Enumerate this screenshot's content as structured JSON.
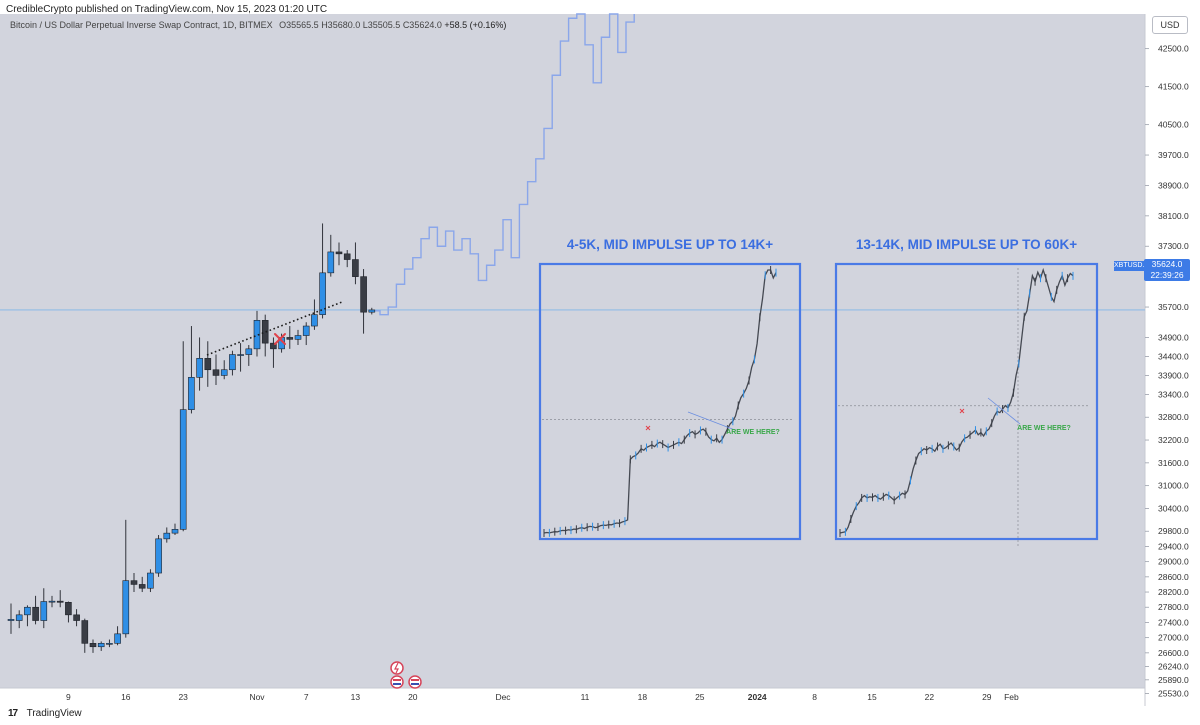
{
  "header": {
    "published": "CredibleCrypto published on TradingView.com, Nov 15, 2023 01:20 UTC"
  },
  "symbol": {
    "name": "Bitcoin / US Dollar Perpetual Inverse Swap Contract, 1D, BITMEX",
    "open": "O35565.5",
    "high": "H35680.0",
    "low": "L35505.5",
    "close": "C35624.0",
    "change": "+58.5 (+0.16%)"
  },
  "currency_button": "USD",
  "price_tag": {
    "ticker": "XBTUSD.P",
    "price": "35624.0",
    "countdown": "22:39:26"
  },
  "footer": {
    "brand": "TradingView",
    "logo": "tv-logo"
  },
  "colors": {
    "background": "#d2d4dd",
    "up": "#2f8fe6",
    "down": "#3a3d45",
    "projection": "#8aa6ea",
    "box": "#4a7ae6",
    "box_title": "#3b6ee0",
    "annotation_green": "#3aa84a",
    "x_mark": "#e1414a"
  },
  "chart_data": {
    "type": "candlestick",
    "title": "",
    "xlabel": "",
    "ylabel": "",
    "ylim": [
      25530,
      43100
    ],
    "y_ticks": [
      42500,
      41500,
      40500,
      39700,
      38900,
      38100,
      37300,
      36500,
      35700,
      34900,
      34400,
      33900,
      33400,
      32800,
      32200,
      31600,
      31000,
      30400,
      29800,
      29400,
      29000,
      28600,
      28200,
      27800,
      27400,
      27000,
      26600,
      26240,
      25890,
      25530
    ],
    "y_tick_labels": [
      "42500.0",
      "41500.0",
      "40500.0",
      "39700.0",
      "38900.0",
      "38100.0",
      "37300.0",
      "36500.0",
      "35700.0",
      "34900.0",
      "34400.0",
      "33900.0",
      "33400.0",
      "32800.0",
      "32200.0",
      "31600.0",
      "31000.0",
      "30400.0",
      "29800.0",
      "29400.0",
      "29000.0",
      "28600.0",
      "28200.0",
      "27800.0",
      "27400.0",
      "27000.0",
      "26600.0",
      "26240.0",
      "25890.0",
      "25530.0"
    ],
    "x_start_date": "2023-10-02",
    "x_end_date": "2024-02-05",
    "x_ticks": [
      {
        "date": "2023-10-09",
        "label": "9"
      },
      {
        "date": "2023-10-16",
        "label": "16"
      },
      {
        "date": "2023-10-23",
        "label": "23"
      },
      {
        "date": "2023-11-01",
        "label": "Nov"
      },
      {
        "date": "2023-11-07",
        "label": "7"
      },
      {
        "date": "2023-11-13",
        "label": "13"
      },
      {
        "date": "2023-11-20",
        "label": "20"
      },
      {
        "date": "2023-12-01",
        "label": "Dec"
      },
      {
        "date": "2023-12-11",
        "label": "11"
      },
      {
        "date": "2023-12-18",
        "label": "18"
      },
      {
        "date": "2023-12-25",
        "label": "25"
      },
      {
        "date": "2024-01-01",
        "label": "2024"
      },
      {
        "date": "2024-01-08",
        "label": "8"
      },
      {
        "date": "2024-01-15",
        "label": "15"
      },
      {
        "date": "2024-01-22",
        "label": "22"
      },
      {
        "date": "2024-01-29",
        "label": "29"
      },
      {
        "date": "2024-02-01",
        "label": "Feb"
      }
    ],
    "candles": [
      {
        "date": "2023-10-02",
        "o": 27450,
        "h": 27900,
        "l": 27100,
        "c": 27480
      },
      {
        "date": "2023-10-03",
        "o": 27450,
        "h": 27720,
        "l": 27250,
        "c": 27600
      },
      {
        "date": "2023-10-04",
        "o": 27600,
        "h": 27850,
        "l": 27300,
        "c": 27800
      },
      {
        "date": "2023-10-05",
        "o": 27800,
        "h": 28100,
        "l": 27350,
        "c": 27450
      },
      {
        "date": "2023-10-06",
        "o": 27450,
        "h": 28300,
        "l": 27250,
        "c": 27950
      },
      {
        "date": "2023-10-07",
        "o": 27950,
        "h": 28100,
        "l": 27800,
        "c": 27960
      },
      {
        "date": "2023-10-08",
        "o": 27960,
        "h": 28250,
        "l": 27800,
        "c": 27930
      },
      {
        "date": "2023-10-09",
        "o": 27930,
        "h": 27950,
        "l": 27400,
        "c": 27600
      },
      {
        "date": "2023-10-10",
        "o": 27600,
        "h": 27750,
        "l": 27300,
        "c": 27450
      },
      {
        "date": "2023-10-11",
        "o": 27450,
        "h": 27500,
        "l": 26600,
        "c": 26850
      },
      {
        "date": "2023-10-12",
        "o": 26850,
        "h": 26950,
        "l": 26600,
        "c": 26760
      },
      {
        "date": "2023-10-13",
        "o": 26760,
        "h": 26900,
        "l": 26650,
        "c": 26850
      },
      {
        "date": "2023-10-14",
        "o": 26850,
        "h": 26950,
        "l": 26750,
        "c": 26850
      },
      {
        "date": "2023-10-15",
        "o": 26850,
        "h": 27300,
        "l": 26800,
        "c": 27100
      },
      {
        "date": "2023-10-16",
        "o": 27100,
        "h": 30100,
        "l": 27000,
        "c": 28500
      },
      {
        "date": "2023-10-17",
        "o": 28500,
        "h": 28700,
        "l": 28200,
        "c": 28400
      },
      {
        "date": "2023-10-18",
        "o": 28400,
        "h": 28600,
        "l": 28200,
        "c": 28300
      },
      {
        "date": "2023-10-19",
        "o": 28300,
        "h": 28800,
        "l": 28200,
        "c": 28700
      },
      {
        "date": "2023-10-20",
        "o": 28700,
        "h": 29700,
        "l": 28600,
        "c": 29600
      },
      {
        "date": "2023-10-21",
        "o": 29600,
        "h": 29900,
        "l": 29500,
        "c": 29750
      },
      {
        "date": "2023-10-22",
        "o": 29750,
        "h": 30000,
        "l": 29700,
        "c": 29850
      },
      {
        "date": "2023-10-23",
        "o": 29850,
        "h": 34800,
        "l": 29800,
        "c": 33000
      },
      {
        "date": "2023-10-24",
        "o": 33000,
        "h": 35200,
        "l": 32900,
        "c": 33850
      },
      {
        "date": "2023-10-25",
        "o": 33850,
        "h": 34900,
        "l": 33500,
        "c": 34350
      },
      {
        "date": "2023-10-26",
        "o": 34350,
        "h": 34800,
        "l": 33600,
        "c": 34050
      },
      {
        "date": "2023-10-27",
        "o": 34050,
        "h": 34450,
        "l": 33650,
        "c": 33900
      },
      {
        "date": "2023-10-28",
        "o": 33900,
        "h": 34300,
        "l": 33800,
        "c": 34050
      },
      {
        "date": "2023-10-29",
        "o": 34050,
        "h": 34550,
        "l": 33900,
        "c": 34450
      },
      {
        "date": "2023-10-30",
        "o": 34450,
        "h": 34750,
        "l": 34000,
        "c": 34450
      },
      {
        "date": "2023-10-31",
        "o": 34450,
        "h": 34700,
        "l": 34150,
        "c": 34600
      },
      {
        "date": "2023-11-01",
        "o": 34600,
        "h": 35600,
        "l": 34400,
        "c": 35350
      },
      {
        "date": "2023-11-02",
        "o": 35350,
        "h": 35500,
        "l": 34400,
        "c": 34750
      },
      {
        "date": "2023-11-03",
        "o": 34750,
        "h": 34900,
        "l": 34100,
        "c": 34600
      },
      {
        "date": "2023-11-04",
        "o": 34600,
        "h": 35000,
        "l": 34500,
        "c": 34900
      },
      {
        "date": "2023-11-05",
        "o": 34900,
        "h": 35200,
        "l": 34600,
        "c": 34850
      },
      {
        "date": "2023-11-06",
        "o": 34850,
        "h": 35100,
        "l": 34700,
        "c": 34950
      },
      {
        "date": "2023-11-07",
        "o": 34950,
        "h": 35300,
        "l": 34700,
        "c": 35200
      },
      {
        "date": "2023-11-08",
        "o": 35200,
        "h": 35900,
        "l": 35100,
        "c": 35500
      },
      {
        "date": "2023-11-09",
        "o": 35500,
        "h": 37900,
        "l": 35400,
        "c": 36600
      },
      {
        "date": "2023-11-10",
        "o": 36600,
        "h": 37600,
        "l": 36500,
        "c": 37150
      },
      {
        "date": "2023-11-11",
        "o": 37150,
        "h": 37400,
        "l": 36800,
        "c": 37100
      },
      {
        "date": "2023-11-12",
        "o": 37100,
        "h": 37200,
        "l": 36750,
        "c": 36950
      },
      {
        "date": "2023-11-13",
        "o": 36950,
        "h": 37400,
        "l": 36300,
        "c": 36500
      },
      {
        "date": "2023-11-14",
        "o": 36500,
        "h": 36700,
        "l": 35000,
        "c": 35565
      },
      {
        "date": "2023-11-15",
        "o": 35565,
        "h": 35680,
        "l": 35505,
        "c": 35624
      }
    ],
    "projection": [
      {
        "date": "2023-11-15",
        "v": 35600
      },
      {
        "date": "2023-11-16",
        "v": 35500
      },
      {
        "date": "2023-11-17",
        "v": 35700
      },
      {
        "date": "2023-11-18",
        "v": 36300
      },
      {
        "date": "2023-11-19",
        "v": 36700
      },
      {
        "date": "2023-11-20",
        "v": 37000
      },
      {
        "date": "2023-11-21",
        "v": 37500
      },
      {
        "date": "2023-11-22",
        "v": 37800
      },
      {
        "date": "2023-11-23",
        "v": 37300
      },
      {
        "date": "2023-11-24",
        "v": 37700
      },
      {
        "date": "2023-11-25",
        "v": 37200
      },
      {
        "date": "2023-11-26",
        "v": 37500
      },
      {
        "date": "2023-11-27",
        "v": 37100
      },
      {
        "date": "2023-11-28",
        "v": 36400
      },
      {
        "date": "2023-11-29",
        "v": 36800
      },
      {
        "date": "2023-11-30",
        "v": 37200
      },
      {
        "date": "2023-12-01",
        "v": 38000
      },
      {
        "date": "2023-12-02",
        "v": 37000
      },
      {
        "date": "2023-12-03",
        "v": 38400
      },
      {
        "date": "2023-12-04",
        "v": 39000
      },
      {
        "date": "2023-12-05",
        "v": 39600
      },
      {
        "date": "2023-12-06",
        "v": 40400
      },
      {
        "date": "2023-12-07",
        "v": 41800
      },
      {
        "date": "2023-12-08",
        "v": 42700
      },
      {
        "date": "2023-12-09",
        "v": 43300
      },
      {
        "date": "2023-12-10",
        "v": 44000
      },
      {
        "date": "2023-12-11",
        "v": 42600
      },
      {
        "date": "2023-12-12",
        "v": 41600
      },
      {
        "date": "2023-12-13",
        "v": 42800
      },
      {
        "date": "2023-12-14",
        "v": 43600
      },
      {
        "date": "2023-12-15",
        "v": 42400
      },
      {
        "date": "2023-12-16",
        "v": 43200
      },
      {
        "date": "2023-12-17",
        "v": 44200
      }
    ],
    "current_price": 35624,
    "annotations": {
      "box1_title": "4-5K, MID IMPULSE UP TO 14K+",
      "box2_title": "13-14K, MID IMPULSE UP TO 60K+",
      "box1_note": "ARE WE HERE?",
      "box2_note": "ARE WE HERE?"
    },
    "inset_series": [
      [
        4100,
        4120,
        4105,
        4130,
        4150,
        4140,
        4180,
        4200,
        4190,
        4220,
        4210,
        4250,
        4240,
        4280,
        4300,
        4270,
        4320,
        4350,
        4340,
        4300,
        4330,
        4380,
        4400,
        4390,
        4420,
        4410,
        4450,
        4480,
        4470,
        4520,
        4550,
        4600,
        6900,
        7000,
        7050,
        7150,
        7300,
        7250,
        7350,
        7400,
        7450,
        7380,
        7500,
        7550,
        7480,
        7420,
        7350,
        7400,
        7450,
        7500,
        7550,
        7500,
        7650,
        7800,
        7900,
        7950,
        7850,
        7900,
        8000,
        8050,
        7950,
        7750,
        7650,
        7600,
        7700,
        7550,
        7650,
        7850,
        8050,
        8250,
        8350,
        8550,
        8950,
        9250,
        9400,
        9600,
        9900,
        10400,
        10700,
        11300,
        12300,
        13000,
        13900,
        14100,
        14100,
        13800,
        14000
      ],
      [
        14000,
        14050,
        14100,
        14500,
        15200,
        15800,
        16300,
        16600,
        17000,
        17200,
        17000,
        17100,
        17050,
        17200,
        17000,
        16900,
        17100,
        17300,
        17200,
        17000,
        16800,
        17000,
        17200,
        17400,
        17300,
        17600,
        18500,
        19500,
        20200,
        20800,
        21000,
        21200,
        21100,
        21300,
        21200,
        21000,
        21400,
        21600,
        21200,
        21300,
        21500,
        21700,
        21400,
        21100,
        21300,
        21800,
        22100,
        22200,
        22400,
        22600,
        22800,
        22400,
        22600,
        22300,
        22700,
        22900,
        23400,
        24000,
        24400,
        24300,
        24600,
        24900,
        24700,
        25200,
        26000,
        27500,
        28500,
        30500,
        32500,
        33000,
        34500,
        36000,
        35500,
        36300,
        35800,
        36500,
        35800,
        35000,
        34200,
        33800,
        34800,
        35500,
        36000,
        35200,
        35800,
        36200,
        36000
      ]
    ]
  }
}
